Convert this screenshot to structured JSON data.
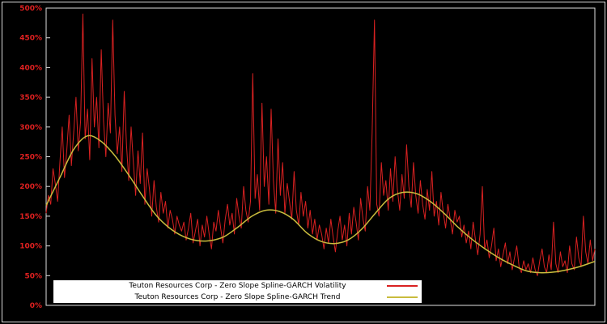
{
  "figure": {
    "background": "#000000",
    "frame_color": "#d9d9d9",
    "spine_color": "#e0e0e0",
    "tick_label_color": "#e02020"
  },
  "chart_data": {
    "type": "line",
    "title": "",
    "xlabel": "",
    "ylabel": "",
    "ylim": [
      0,
      500
    ],
    "y_ticks": [
      "0%",
      "50%",
      "100%",
      "150%",
      "200%",
      "250%",
      "300%",
      "350%",
      "400%",
      "450%",
      "500%"
    ],
    "grid": false,
    "legend_position": "bottom-inside-left",
    "series": [
      {
        "name": "Teuton Resources Corp - Zero Slope Spline-GARCH Volatility",
        "color": "#d92121",
        "width": 1,
        "smooth": false,
        "values": [
          155,
          185,
          170,
          230,
          205,
          175,
          240,
          300,
          215,
          260,
          320,
          235,
          290,
          350,
          260,
          310,
          490,
          280,
          330,
          245,
          415,
          300,
          350,
          265,
          430,
          310,
          250,
          340,
          290,
          480,
          320,
          255,
          300,
          225,
          360,
          270,
          210,
          300,
          240,
          185,
          260,
          205,
          290,
          170,
          230,
          195,
          150,
          210,
          165,
          140,
          190,
          155,
          175,
          130,
          160,
          145,
          120,
          150,
          135,
          125,
          140,
          110,
          130,
          155,
          105,
          125,
          145,
          100,
          135,
          115,
          150,
          120,
          95,
          140,
          125,
          160,
          130,
          105,
          145,
          170,
          135,
          155,
          120,
          180,
          150,
          130,
          200,
          160,
          140,
          175,
          390,
          180,
          220,
          160,
          340,
          200,
          250,
          170,
          330,
          210,
          155,
          280,
          185,
          240,
          155,
          205,
          175,
          145,
          225,
          160,
          135,
          190,
          150,
          175,
          130,
          160,
          120,
          145,
          110,
          135,
          120,
          95,
          130,
          105,
          145,
          115,
          90,
          125,
          150,
          110,
          135,
          100,
          155,
          120,
          165,
          140,
          110,
          180,
          145,
          125,
          200,
          160,
          290,
          480,
          170,
          150,
          240,
          185,
          210,
          160,
          230,
          175,
          250,
          195,
          160,
          220,
          180,
          270,
          200,
          165,
          240,
          185,
          155,
          210,
          170,
          145,
          195,
          160,
          225,
          150,
          175,
          135,
          190,
          155,
          130,
          170,
          145,
          120,
          160,
          140,
          150,
          115,
          135,
          105,
          125,
          95,
          140,
          110,
          85,
          120,
          200,
          95,
          110,
          80,
          100,
          130,
          75,
          95,
          65,
          85,
          105,
          70,
          90,
          60,
          80,
          100,
          65,
          55,
          75,
          60,
          70,
          55,
          80,
          60,
          50,
          75,
          95,
          65,
          55,
          85,
          60,
          140,
          70,
          55,
          90,
          65,
          75,
          55,
          100,
          70,
          60,
          115,
          80,
          65,
          150,
          90,
          70,
          110,
          75,
          95
        ]
      },
      {
        "name": "Teuton Resources Corp - Zero Slope Spline-GARCH Trend",
        "color": "#c9bc3d",
        "width": 1.5,
        "smooth": true,
        "values": [
          168,
          215,
          262,
          285,
          276,
          252,
          220,
          185,
          152,
          130,
          116,
          109,
          109,
          116,
          132,
          150,
          160,
          158,
          145,
          122,
          108,
          104,
          110,
          128,
          155,
          180,
          190,
          188,
          175,
          155,
          132,
          112,
          95,
          80,
          68,
          58,
          55,
          56,
          60,
          66,
          74
        ]
      }
    ]
  }
}
